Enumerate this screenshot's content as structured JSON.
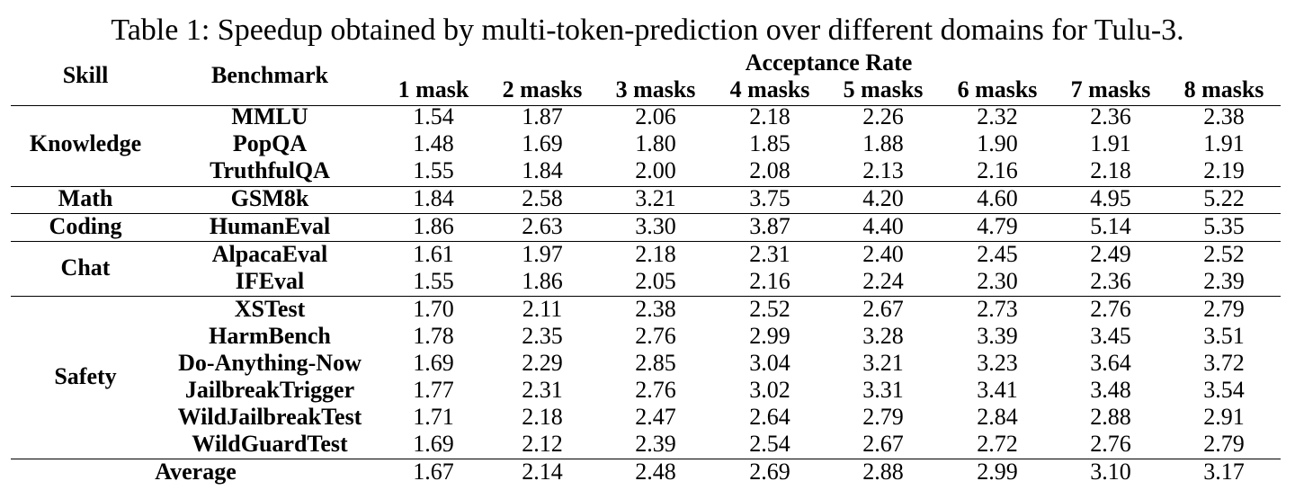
{
  "caption": "Table 1: Speedup obtained by multi-token-prediction over different domains for Tulu-3.",
  "header": {
    "skill": "Skill",
    "benchmark": "Benchmark",
    "group": "Acceptance Rate",
    "columns": [
      "1 mask",
      "2 masks",
      "3 masks",
      "4 masks",
      "5 masks",
      "6 masks",
      "7 masks",
      "8 masks"
    ]
  },
  "groups": [
    {
      "skill": "Knowledge",
      "rows": [
        {
          "benchmark": "MMLU",
          "values": [
            "1.54",
            "1.87",
            "2.06",
            "2.18",
            "2.26",
            "2.32",
            "2.36",
            "2.38"
          ]
        },
        {
          "benchmark": "PopQA",
          "values": [
            "1.48",
            "1.69",
            "1.80",
            "1.85",
            "1.88",
            "1.90",
            "1.91",
            "1.91"
          ]
        },
        {
          "benchmark": "TruthfulQA",
          "values": [
            "1.55",
            "1.84",
            "2.00",
            "2.08",
            "2.13",
            "2.16",
            "2.18",
            "2.19"
          ]
        }
      ]
    },
    {
      "skill": "Math",
      "rows": [
        {
          "benchmark": "GSM8k",
          "values": [
            "1.84",
            "2.58",
            "3.21",
            "3.75",
            "4.20",
            "4.60",
            "4.95",
            "5.22"
          ]
        }
      ]
    },
    {
      "skill": "Coding",
      "rows": [
        {
          "benchmark": "HumanEval",
          "values": [
            "1.86",
            "2.63",
            "3.30",
            "3.87",
            "4.40",
            "4.79",
            "5.14",
            "5.35"
          ]
        }
      ]
    },
    {
      "skill": "Chat",
      "rows": [
        {
          "benchmark": "AlpacaEval",
          "values": [
            "1.61",
            "1.97",
            "2.18",
            "2.31",
            "2.40",
            "2.45",
            "2.49",
            "2.52"
          ]
        },
        {
          "benchmark": "IFEval",
          "values": [
            "1.55",
            "1.86",
            "2.05",
            "2.16",
            "2.24",
            "2.30",
            "2.36",
            "2.39"
          ]
        }
      ]
    },
    {
      "skill": "Safety",
      "rows": [
        {
          "benchmark": "XSTest",
          "values": [
            "1.70",
            "2.11",
            "2.38",
            "2.52",
            "2.67",
            "2.73",
            "2.76",
            "2.79"
          ]
        },
        {
          "benchmark": "HarmBench",
          "values": [
            "1.78",
            "2.35",
            "2.76",
            "2.99",
            "3.28",
            "3.39",
            "3.45",
            "3.51"
          ]
        },
        {
          "benchmark": "Do-Anything-Now",
          "values": [
            "1.69",
            "2.29",
            "2.85",
            "3.04",
            "3.21",
            "3.23",
            "3.64",
            "3.72"
          ]
        },
        {
          "benchmark": "JailbreakTrigger",
          "values": [
            "1.77",
            "2.31",
            "2.76",
            "3.02",
            "3.31",
            "3.41",
            "3.48",
            "3.54"
          ]
        },
        {
          "benchmark": "WildJailbreakTest",
          "values": [
            "1.71",
            "2.18",
            "2.47",
            "2.64",
            "2.79",
            "2.84",
            "2.88",
            "2.91"
          ]
        },
        {
          "benchmark": "WildGuardTest",
          "values": [
            "1.69",
            "2.12",
            "2.39",
            "2.54",
            "2.67",
            "2.72",
            "2.76",
            "2.79"
          ]
        }
      ]
    }
  ],
  "average": {
    "label": "Average",
    "values": [
      "1.67",
      "2.14",
      "2.48",
      "2.69",
      "2.88",
      "2.99",
      "3.10",
      "3.17"
    ]
  }
}
